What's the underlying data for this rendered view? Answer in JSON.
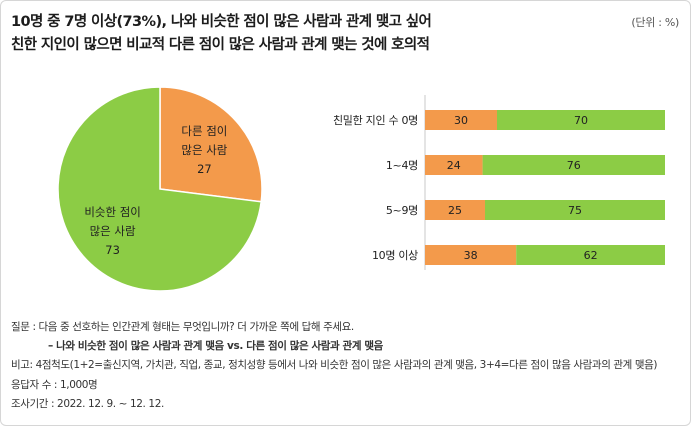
{
  "header": {
    "title_line1": "10명 중 7명 이상(73%), 나와 비슷한 점이 많은 사람과 관계 맺고 싶어",
    "title_line2": "친한 지인이 많으면 비교적 다른 점이 많은 사람과 관계 맺는 것에 호의적",
    "unit": "(단위 : %)"
  },
  "chart_data": [
    {
      "type": "pie",
      "slices": [
        {
          "name_lines": [
            "다른 점이",
            "많은 사람"
          ],
          "value": 27,
          "color": "#f39a4b"
        },
        {
          "name_lines": [
            "비슷한 점이",
            "많은 사람"
          ],
          "value": 73,
          "color": "#8ccc45"
        }
      ]
    },
    {
      "type": "bar",
      "orientation": "horizontal",
      "stacked": true,
      "xlim": [
        0,
        100
      ],
      "categories": [
        "친밀한 지인 수 0명",
        "1~4명",
        "5~9명",
        "10명 이상"
      ],
      "series": [
        {
          "values": [
            30,
            24,
            25,
            38
          ],
          "color": "#f39a4b"
        },
        {
          "values": [
            70,
            76,
            75,
            62
          ],
          "color": "#8ccc45"
        }
      ]
    }
  ],
  "notes": {
    "question": "질문 : 다음 중 선호하는 인간관계 형태는 무엇입니까? 더 가까운 쪽에 답해 주세요.",
    "question_sub": "– 나와 비슷한 점이 많은 사람과 관계 맺음 vs. 다른 점이 많은 사람과 관계 맺음",
    "note": "비고: 4점척도(1+2=출신지역, 가치관, 직업, 종교, 정치성향 등에서 나와 비슷한 점이 많은 사람과의 관계 맺음, 3+4=다른 점이 많음 사람과의 관계 맺음)",
    "respondents": "응답자 수 : 1,000명",
    "period": "조사기간 : 2022. 12. 9. ~ 12. 12."
  }
}
